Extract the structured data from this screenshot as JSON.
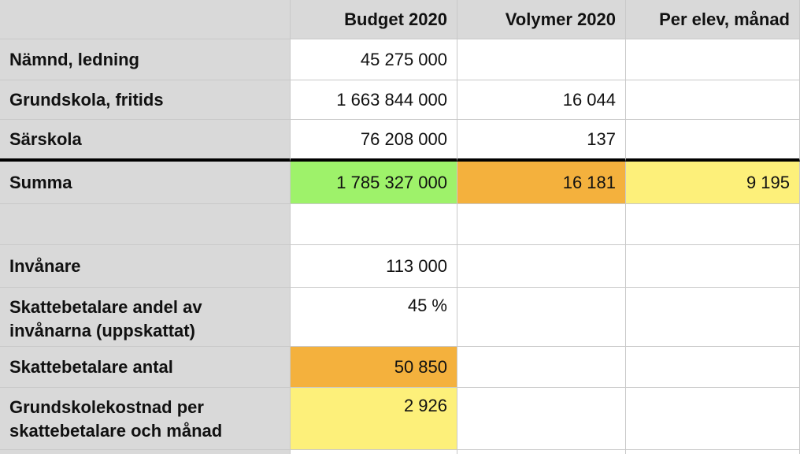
{
  "columns": [
    "",
    "Budget 2020",
    "Volymer 2020",
    "Per elev, månad"
  ],
  "rows": [
    {
      "label": "Nämnd, ledning",
      "budget": "45 275 000",
      "volymer": "",
      "per_elev": ""
    },
    {
      "label": "Grundskola, fritids",
      "budget": "1 663 844 000",
      "volymer": "16 044",
      "per_elev": ""
    },
    {
      "label": "Särskola",
      "budget": "76 208 000",
      "volymer": "137",
      "per_elev": ""
    },
    {
      "label": "Summa",
      "budget": "1 785 327 000",
      "volymer": "16 181",
      "per_elev": "9 195"
    },
    {
      "label": "",
      "budget": "",
      "volymer": "",
      "per_elev": ""
    },
    {
      "label": "Invånare",
      "budget": "113 000",
      "volymer": "",
      "per_elev": ""
    },
    {
      "label": "Skattebetalare andel av invånarna (uppskattat)",
      "budget": "45 %",
      "volymer": "",
      "per_elev": ""
    },
    {
      "label": "Skattebetalare antal",
      "budget": "50 850",
      "volymer": "",
      "per_elev": ""
    },
    {
      "label": "Grundskolekostnad per skattebetalare och månad",
      "budget": "2 926",
      "volymer": "",
      "per_elev": ""
    }
  ],
  "highlight_colors": {
    "green": "#9ef26a",
    "orange": "#f4b13d",
    "yellow": "#fdf07a",
    "header_gray": "#d9d9d9"
  }
}
